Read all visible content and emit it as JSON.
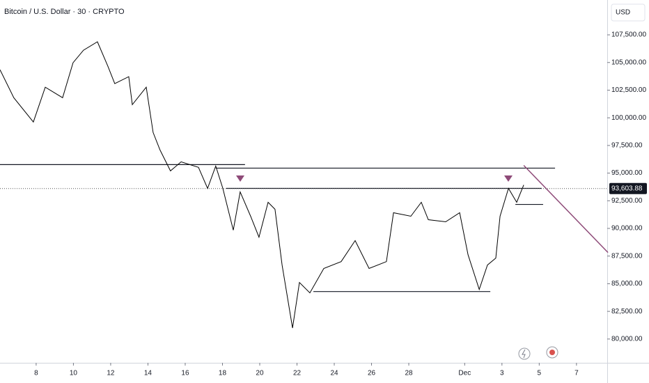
{
  "chart_data": {
    "type": "line",
    "title": "Bitcoin / U.S. Dollar · 30 · CRYPTO",
    "currency": "USD",
    "color": "#000000",
    "x": [
      6.06,
      6.8,
      7.85,
      8.49,
      9.42,
      9.98,
      10.54,
      11.29,
      11.85,
      12.22,
      12.97,
      13.16,
      13.91,
      14.28,
      14.65,
      15.21,
      15.78,
      16.71,
      17.2,
      17.64,
      18.02,
      18.58,
      18.95,
      19.51,
      19.96,
      20.45,
      20.82,
      21.2,
      21.76,
      22.13,
      22.69,
      23.44,
      24.37,
      25.12,
      25.87,
      26.8,
      27.18,
      28.11,
      28.67,
      29.05,
      29.98,
      30.73,
      31.18,
      31.78,
      32.22,
      32.67,
      32.9,
      33.35,
      33.79,
      34.17
    ],
    "values": [
      104350,
      101820,
      99620,
      102770,
      101820,
      104980,
      106110,
      106870,
      104660,
      103090,
      103720,
      101190,
      102770,
      98670,
      97090,
      95200,
      96020,
      95520,
      93620,
      95640,
      93620,
      89840,
      93300,
      91100,
      89210,
      92360,
      91730,
      86690,
      81000,
      85110,
      84170,
      86380,
      87000,
      88900,
      86380,
      87000,
      91420,
      91100,
      92360,
      90790,
      90600,
      91420,
      87630,
      84480,
      86690,
      87320,
      91100,
      93620,
      92360,
      93930
    ],
    "xlim": [
      6.06,
      38.65
    ],
    "ylim": [
      77850,
      110650
    ],
    "xticks": [
      8,
      10,
      12,
      14,
      16,
      18,
      20,
      22,
      24,
      26,
      28,
      {
        "value": 31,
        "label": "Dec"
      },
      {
        "value": 33,
        "label": "3"
      },
      {
        "value": 35,
        "label": "5"
      },
      {
        "value": 37,
        "label": "7"
      }
    ],
    "yticks": [
      {
        "value": 80000,
        "label": "80,000.00"
      },
      {
        "value": 82500,
        "label": "82,500.00"
      },
      {
        "value": 85000,
        "label": "85,000.00"
      },
      {
        "value": 87500,
        "label": "87,500.00"
      },
      {
        "value": 90000,
        "label": "90,000.00"
      },
      {
        "value": 92500,
        "label": "92,500.00"
      },
      {
        "value": 95000,
        "label": "95,000.00"
      },
      {
        "value": 97500,
        "label": "97,500.00"
      },
      {
        "value": 100000,
        "label": "100,000.00"
      },
      {
        "value": 102500,
        "label": "102,500.00"
      },
      {
        "value": 105000,
        "label": "105,000.00"
      },
      {
        "value": 107500,
        "label": "107,500.00"
      }
    ],
    "levels": [
      {
        "price": 95770,
        "x": [
          6.06,
          19.21
        ]
      },
      {
        "price": 95450,
        "x": [
          17.64,
          35.85
        ]
      },
      {
        "price": 93620,
        "x": [
          18.2,
          35.14
        ]
      },
      {
        "price": 92170,
        "x": [
          33.72,
          35.21
        ]
      },
      {
        "price": 84290,
        "x": [
          22.88,
          32.375
        ]
      }
    ],
    "trend": {
      "x": [
        34.17,
        38.69
      ],
      "values": [
        95700,
        87820
      ]
    },
    "last_price": {
      "value": 93603.88,
      "label": "93,603.88"
    }
  }
}
